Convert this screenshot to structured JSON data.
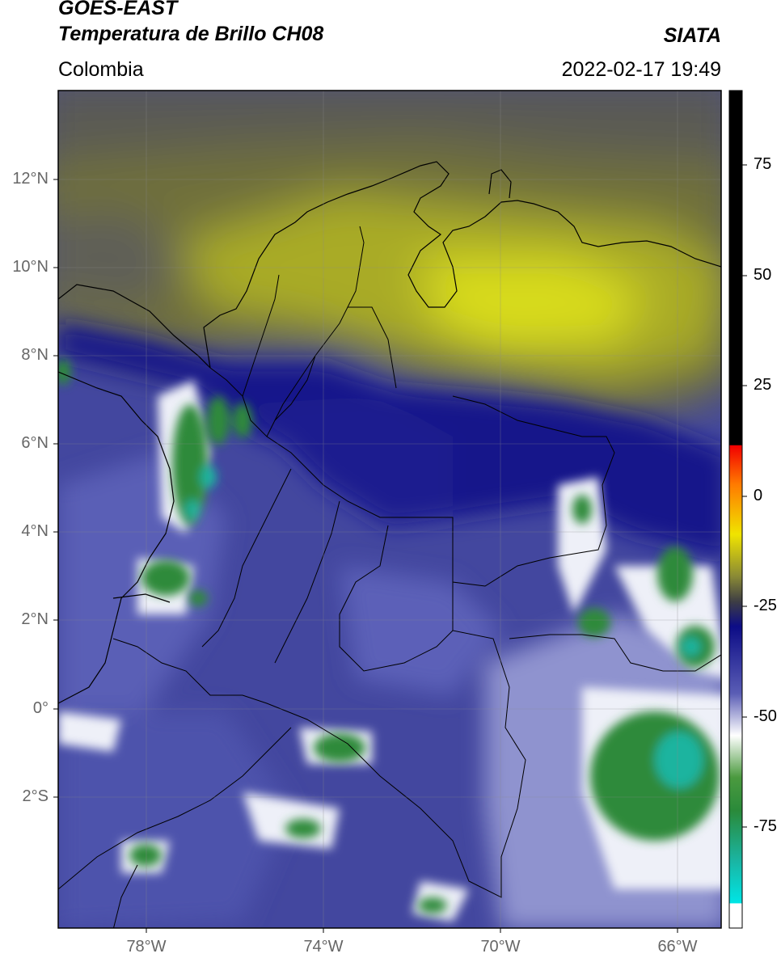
{
  "header": {
    "title_line1": "GOES-EAST",
    "title_line2": "Temperatura de Brillo CH08",
    "agency": "SIATA",
    "region": "Colombia",
    "datetime": "2022-02-17 19:49"
  },
  "map": {
    "lat_ticks": [
      {
        "value": 12,
        "label": "12°N"
      },
      {
        "value": 10,
        "label": "10°N"
      },
      {
        "value": 8,
        "label": "8°N"
      },
      {
        "value": 6,
        "label": "6°N"
      },
      {
        "value": 4,
        "label": "4°N"
      },
      {
        "value": 2,
        "label": "2°N"
      },
      {
        "value": 0,
        "label": "0°"
      },
      {
        "value": -2,
        "label": "2°S"
      }
    ],
    "lon_ticks": [
      {
        "value": -78,
        "label": "78°W"
      },
      {
        "value": -74,
        "label": "74°W"
      },
      {
        "value": -70,
        "label": "70°W"
      },
      {
        "value": -66,
        "label": "66°W"
      }
    ],
    "extent": {
      "lon_min": -79.95,
      "lon_max": -64.95,
      "lat_min": -4.95,
      "lat_max": 14.0
    },
    "colors": {
      "high_cloud_green": "#2f8a3a",
      "cold_cyan": "#1fb59a",
      "white_band": "#f2f4f8",
      "blue_mid": "#3c3fa0",
      "navy": "#12147e",
      "dark_gray": "#55555a",
      "olive": "#8c8c2c",
      "yellow": "#dfe21a"
    }
  },
  "colorbar": {
    "ticks": [
      {
        "value": 75,
        "label": "75"
      },
      {
        "value": 50,
        "label": "50"
      },
      {
        "value": 25,
        "label": "25"
      },
      {
        "value": 0,
        "label": "0"
      },
      {
        "value": -25,
        "label": "-25"
      },
      {
        "value": -50,
        "label": "-50"
      },
      {
        "value": -75,
        "label": "-75"
      }
    ],
    "range": [
      -100,
      90
    ]
  }
}
